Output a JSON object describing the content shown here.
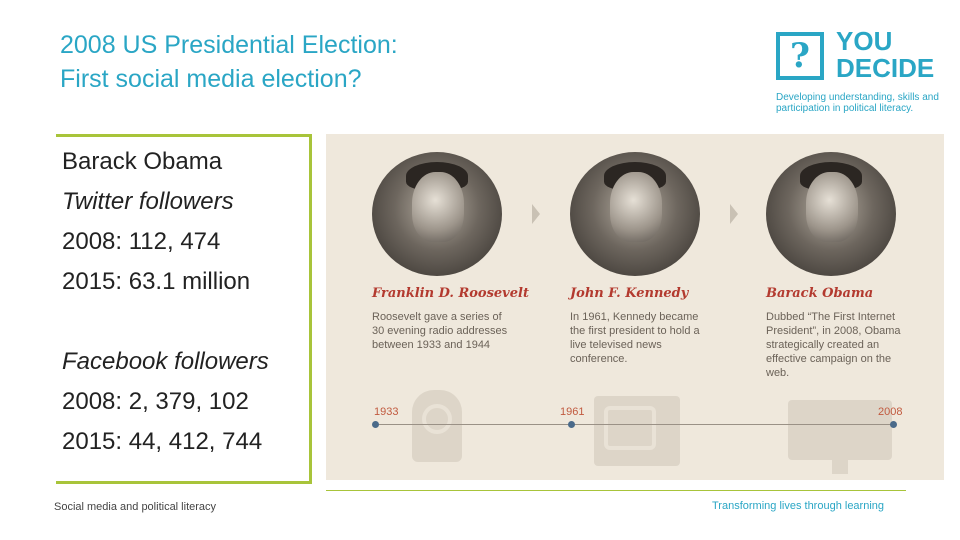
{
  "title": {
    "line1": "2008 US Presidential Election:",
    "line2": "First social media election?"
  },
  "logo": {
    "mark": "?",
    "word_line1": "YOU",
    "word_line2": "DECIDE",
    "tagline": "Developing understanding, skills and participation in political literacy."
  },
  "stats": {
    "name": "Barack Obama",
    "twitter_label": "Twitter followers",
    "twitter_2008": "2008: 112, 474",
    "twitter_2015": "2015: 63.1 million",
    "facebook_label": "Facebook followers",
    "facebook_2008": "2008: 2, 379, 102",
    "facebook_2015": "2015: 44, 412, 744"
  },
  "infographic": {
    "presidents": [
      {
        "name": "Franklin D. Roosevelt",
        "desc": "Roosevelt gave a series of 30 evening radio addresses between 1933 and 1944"
      },
      {
        "name": "John F. Kennedy",
        "desc": "In 1961, Kennedy became the first president to hold a live televised news conference."
      },
      {
        "name": "Barack Obama",
        "desc": "Dubbed “The First Internet President”, in 2008, Obama strategically created an effective campaign on the web."
      }
    ],
    "years": [
      "1933",
      "1961",
      "2008"
    ],
    "colors": {
      "accent_red": "#b33a2f",
      "background": "#efe8dc"
    }
  },
  "footer": {
    "left": "Social media and political literacy",
    "right": "Transforming lives through learning"
  },
  "colors": {
    "brand_blue": "#2aa6c5",
    "brand_green": "#a8c43a"
  }
}
